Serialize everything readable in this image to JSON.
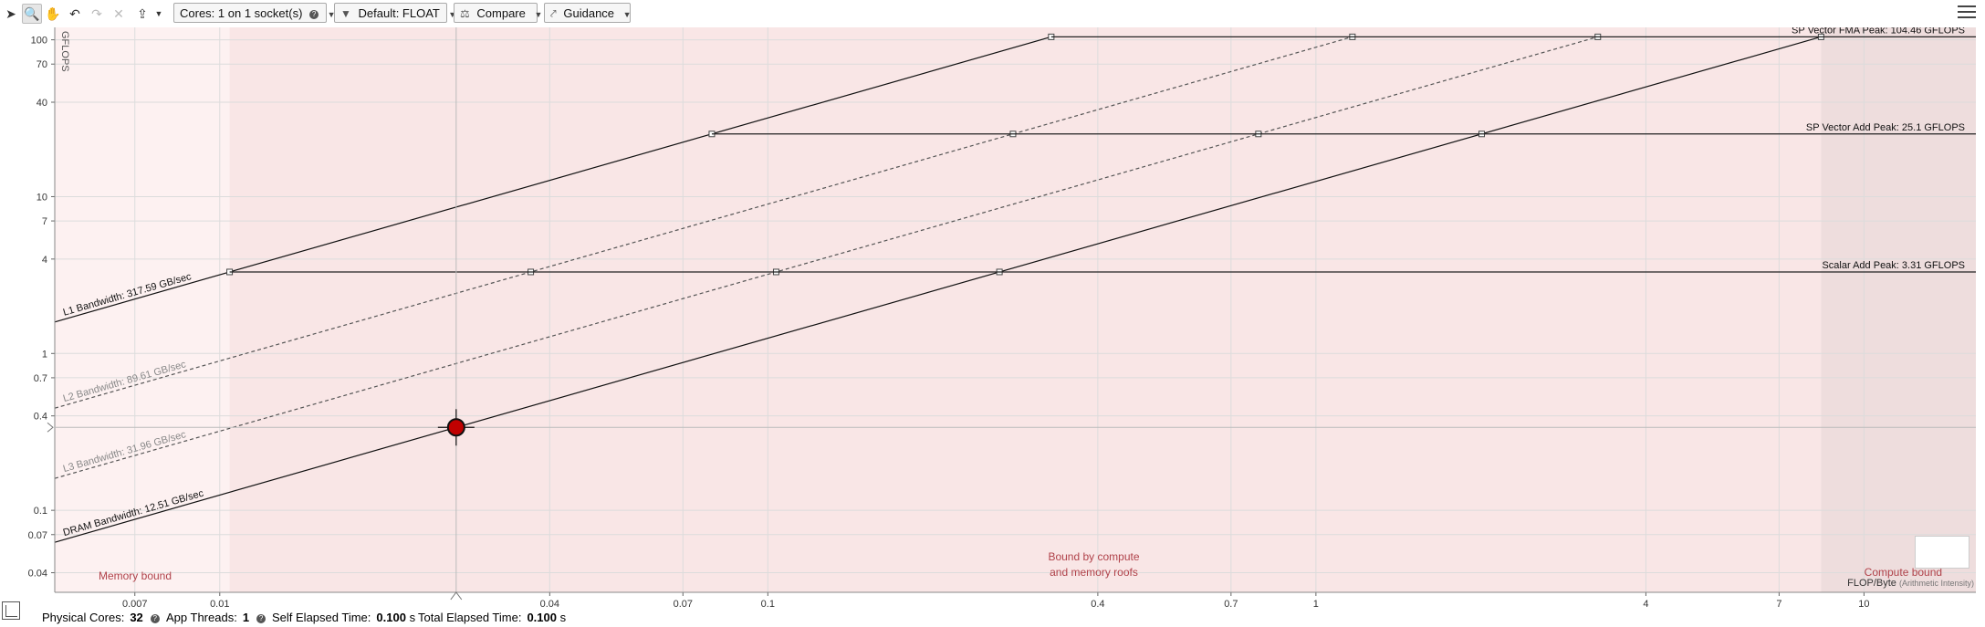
{
  "toolbar": {
    "cores_label": "Cores:",
    "cores_value": "1 on 1 socket(s)",
    "filter_label": "Default: FLOAT",
    "compare_label": "Compare",
    "guidance_label": "Guidance"
  },
  "chart_data": {
    "type": "line",
    "xscale": "log",
    "yscale": "log",
    "xlim": [
      0.005,
      16
    ],
    "ylim": [
      0.03,
      120
    ],
    "ylabel": "GFLOPS",
    "xlabel": "FLOP/Byte",
    "xlabel_note": "(Arithmetic Intensity)",
    "x_ticks": [
      "0.007",
      "0.01",
      "0.04",
      "0.07",
      "0.1",
      "0.4",
      "0.7",
      "1",
      "4",
      "7",
      "10"
    ],
    "y_ticks": [
      "100",
      "70",
      "40",
      "10",
      "7",
      "4",
      "1",
      "0.7",
      "0.4",
      "0.1",
      "0.07",
      "0.04"
    ],
    "compute_roofs": [
      {
        "name": "SP Vector FMA Peak: 104.46 GFLOPS",
        "gflops": 104.46
      },
      {
        "name": "SP Vector Add Peak: 25.1 GFLOPS",
        "gflops": 25.1
      },
      {
        "name": "Scalar Add Peak: 3.31 GFLOPS",
        "gflops": 3.31
      }
    ],
    "memory_roofs": [
      {
        "name": "L1 Bandwidth: 317.59 GB/sec",
        "gb_per_sec": 317.59,
        "style": "solid"
      },
      {
        "name": "L2 Bandwidth: 89.61 GB/sec",
        "gb_per_sec": 89.61,
        "style": "dashed"
      },
      {
        "name": "L3 Bandwidth: 31.96 GB/sec",
        "gb_per_sec": 31.96,
        "style": "dashed"
      },
      {
        "name": "DRAM Bandwidth: 12.51 GB/sec",
        "gb_per_sec": 12.51,
        "style": "solid"
      }
    ],
    "points": [
      {
        "x": 0.027,
        "y": 0.338,
        "color": "#c00000"
      }
    ],
    "regions": {
      "memory": "Memory bound",
      "mixed_line1": "Bound by compute",
      "mixed_line2": "and memory roofs",
      "compute": "Compute bound"
    }
  },
  "status": {
    "physical_cores_label": "Physical Cores:",
    "physical_cores_value": "32",
    "app_threads_label": "App Threads:",
    "app_threads_value": "1",
    "self_elapsed_label": "Self Elapsed Time:",
    "self_elapsed_value": "0.100",
    "total_elapsed_label": "Total Elapsed Time:",
    "total_elapsed_value": "0.100",
    "time_unit": "s"
  }
}
